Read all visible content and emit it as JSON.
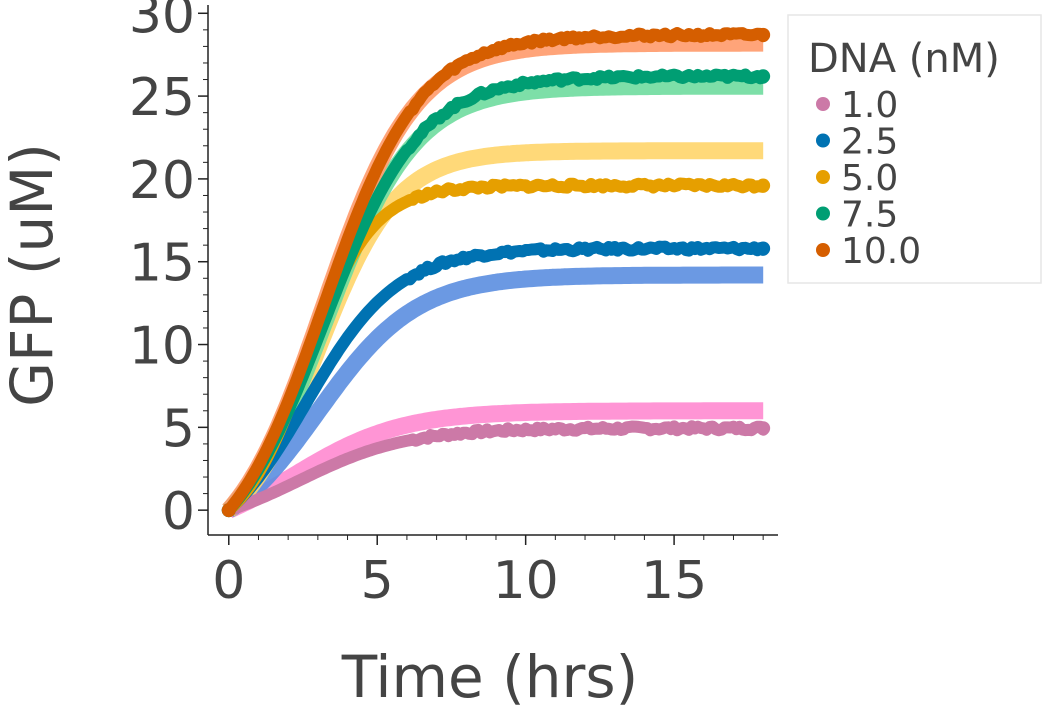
{
  "chart_data": {
    "type": "line",
    "xlabel": "Time (hrs)",
    "ylabel": "GFP (uM)",
    "xlim": [
      -0.7,
      18.5
    ],
    "ylim": [
      -1.5,
      30.5
    ],
    "xticks": [
      0,
      5,
      10,
      15
    ],
    "yticks": [
      0,
      5,
      10,
      15,
      20,
      25,
      30
    ],
    "xtick_labels": [
      "0",
      "5",
      "10",
      "15"
    ],
    "ytick_labels": [
      "0",
      "5",
      "10",
      "15",
      "20",
      "25",
      "30"
    ],
    "grid": false,
    "legend": {
      "title": "DNA (nM)",
      "placement": "right",
      "entries": [
        "1.0",
        "2.5",
        "5.0",
        "7.5",
        "10.0"
      ]
    },
    "series": [
      {
        "name": "1.0",
        "color": "#cc79a7",
        "model_color": "#ff8ad0",
        "plateau": 4.95,
        "model_plateau": 6.0,
        "k": 0.55,
        "t_lag": 2.4,
        "model_k": 0.55,
        "model_t_lag": 2.2
      },
      {
        "name": "2.5",
        "color": "#0072b2",
        "model_color": "#5b8ee0",
        "plateau": 15.8,
        "model_plateau": 14.2,
        "k": 0.65,
        "t_lag": 2.6,
        "model_k": 0.6,
        "model_t_lag": 3.0
      },
      {
        "name": "5.0",
        "color": "#e69f00",
        "model_color": "#ffd56a",
        "plateau": 19.6,
        "model_plateau": 21.7,
        "k": 0.9,
        "t_lag": 2.6,
        "model_k": 0.75,
        "model_t_lag": 3.0
      },
      {
        "name": "7.5",
        "color": "#009e73",
        "model_color": "#6fdc9e",
        "plateau": 26.2,
        "model_plateau": 25.6,
        "k": 0.62,
        "t_lag": 3.2,
        "model_k": 0.65,
        "model_t_lag": 3.2
      },
      {
        "name": "10.0",
        "color": "#d55e00",
        "model_color": "#ff9a6a",
        "plateau": 28.7,
        "model_plateau": 28.2,
        "k": 0.62,
        "t_lag": 3.2,
        "model_k": 0.65,
        "model_t_lag": 3.2
      }
    ],
    "x_max": 18.0
  }
}
